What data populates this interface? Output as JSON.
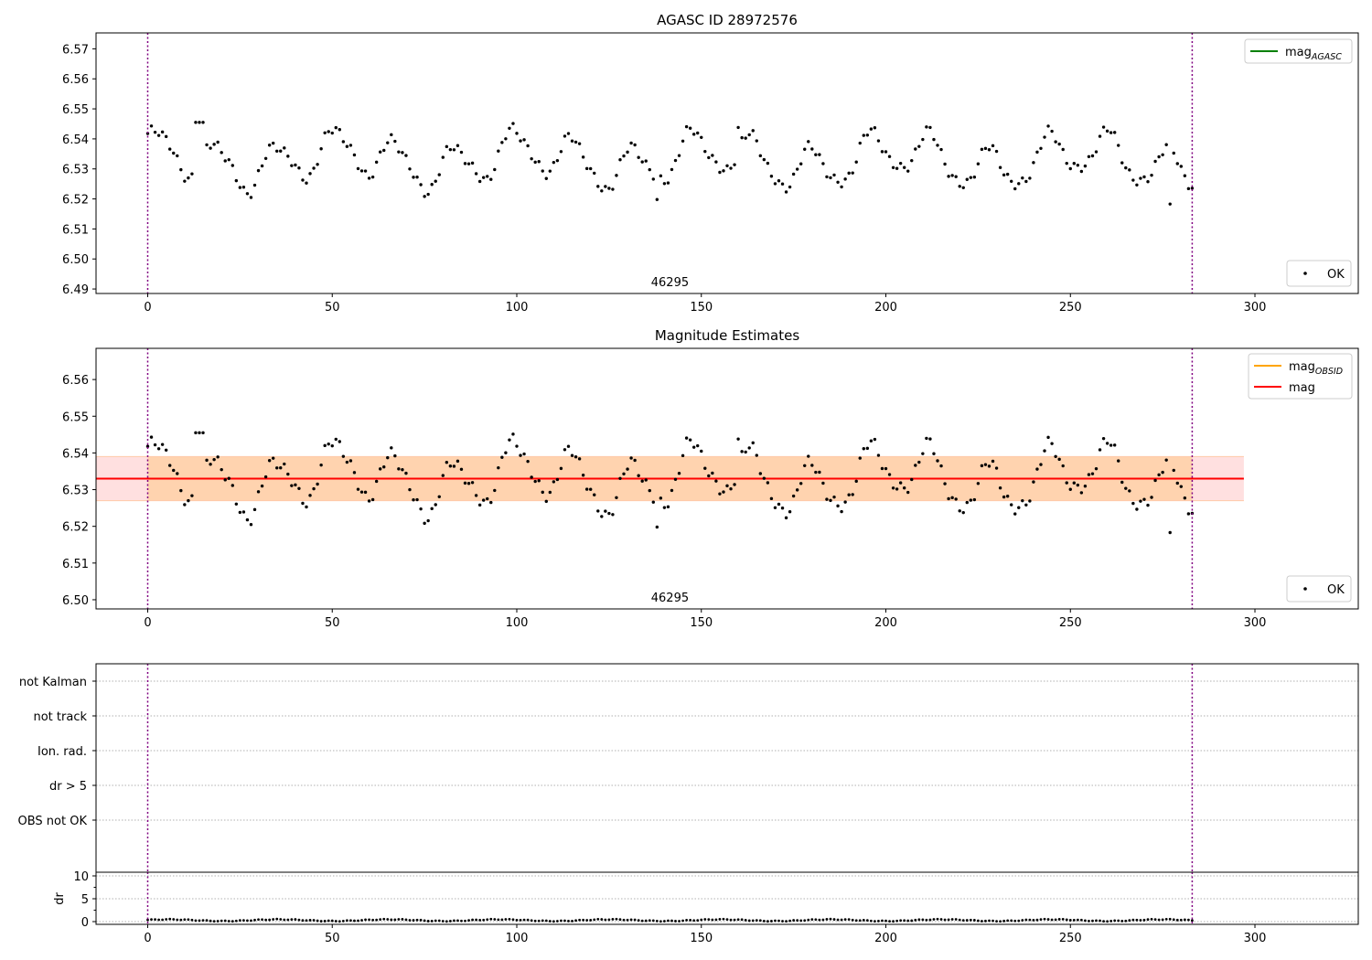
{
  "figure": {
    "background": "#ffffff"
  },
  "chart_data": [
    {
      "id": "p1",
      "type": "scatter",
      "title": "AGASC ID 28972576",
      "xlim": [
        -14,
        328
      ],
      "ylim": [
        6.4885,
        6.5753
      ],
      "xticks": [
        0,
        50,
        100,
        150,
        200,
        250,
        300
      ],
      "xtick_labels": [
        "0",
        "50",
        "100",
        "150",
        "200",
        "250",
        "300"
      ],
      "yticks": [
        6.49,
        6.5,
        6.51,
        6.52,
        6.53,
        6.54,
        6.55,
        6.56,
        6.57
      ],
      "ytick_labels": [
        "6.49",
        "6.50",
        "6.51",
        "6.52",
        "6.53",
        "6.54",
        "6.55",
        "6.56",
        "6.57"
      ],
      "vlines": [
        0,
        283
      ],
      "vline_color": "#800080",
      "obsid_label": "46295",
      "obsid_x": 141.5,
      "legend_lines": [
        {
          "label": "mag",
          "subscript": "AGASC",
          "color": "#008000"
        }
      ],
      "legend_points": [
        {
          "label": "OK",
          "color": "#000000"
        }
      ],
      "series_note": "magnitudes 6.518–6.546, one point per sample index 0–283"
    },
    {
      "id": "p2",
      "type": "scatter",
      "title": "Magnitude Estimates",
      "xlim": [
        -14,
        328
      ],
      "ylim": [
        6.4975,
        6.5685
      ],
      "xticks": [
        0,
        50,
        100,
        150,
        200,
        250,
        300
      ],
      "xtick_labels": [
        "0",
        "50",
        "100",
        "150",
        "200",
        "250",
        "300"
      ],
      "yticks": [
        6.5,
        6.51,
        6.52,
        6.53,
        6.54,
        6.55,
        6.56
      ],
      "ytick_labels": [
        "6.50",
        "6.51",
        "6.52",
        "6.53",
        "6.54",
        "6.55",
        "6.56"
      ],
      "vlines": [
        0,
        283
      ],
      "vline_color": "#800080",
      "obsid_label": "46295",
      "obsid_x": 141.5,
      "mag_value": 6.533,
      "mag_obsid_band": [
        6.527,
        6.539
      ],
      "mag_band_x": [
        0,
        283
      ],
      "mag_band_color": "#ffa500",
      "mag_line_x": [
        -14,
        297
      ],
      "mag_band2": [
        6.527,
        6.539
      ],
      "mag_band2_x": [
        -14,
        297
      ],
      "mag_band2_color": "#ff0000",
      "legend_lines": [
        {
          "label": "mag",
          "subscript": "OBSID",
          "color": "#ffa500"
        },
        {
          "label": "mag",
          "subscript": "",
          "color": "#ff0000"
        }
      ],
      "legend_points": [
        {
          "label": "OK",
          "color": "#000000"
        }
      ]
    },
    {
      "id": "p3",
      "type": "scatter",
      "title": "",
      "xlim": [
        -14,
        328
      ],
      "ylim": [
        -0.5,
        5.5
      ],
      "categories": [
        "OBS not OK",
        "dr > 5",
        "Ion. rad.",
        "not track",
        "not Kalman"
      ],
      "category_y": [
        1,
        2,
        3,
        4,
        5
      ],
      "vlines": [
        0,
        283
      ],
      "vline_color": "#800080",
      "flag_points": []
    },
    {
      "id": "p4",
      "type": "scatter",
      "title": "",
      "ylabel": "dr",
      "xlim": [
        -14,
        328
      ],
      "ylim": [
        -0.6,
        10.8
      ],
      "xticks": [
        0,
        50,
        100,
        150,
        200,
        250,
        300
      ],
      "xtick_labels": [
        "0",
        "50",
        "100",
        "150",
        "200",
        "250",
        "300"
      ],
      "yticks": [
        0,
        5,
        10
      ],
      "ytick_labels": [
        "0",
        "5",
        "10"
      ],
      "yminor": [
        2.5,
        7.5
      ],
      "vlines": [
        0,
        283
      ],
      "vline_color": "#800080",
      "dr_points": "284 points, dr ≈ 0.1–0.5 pixels"
    }
  ]
}
